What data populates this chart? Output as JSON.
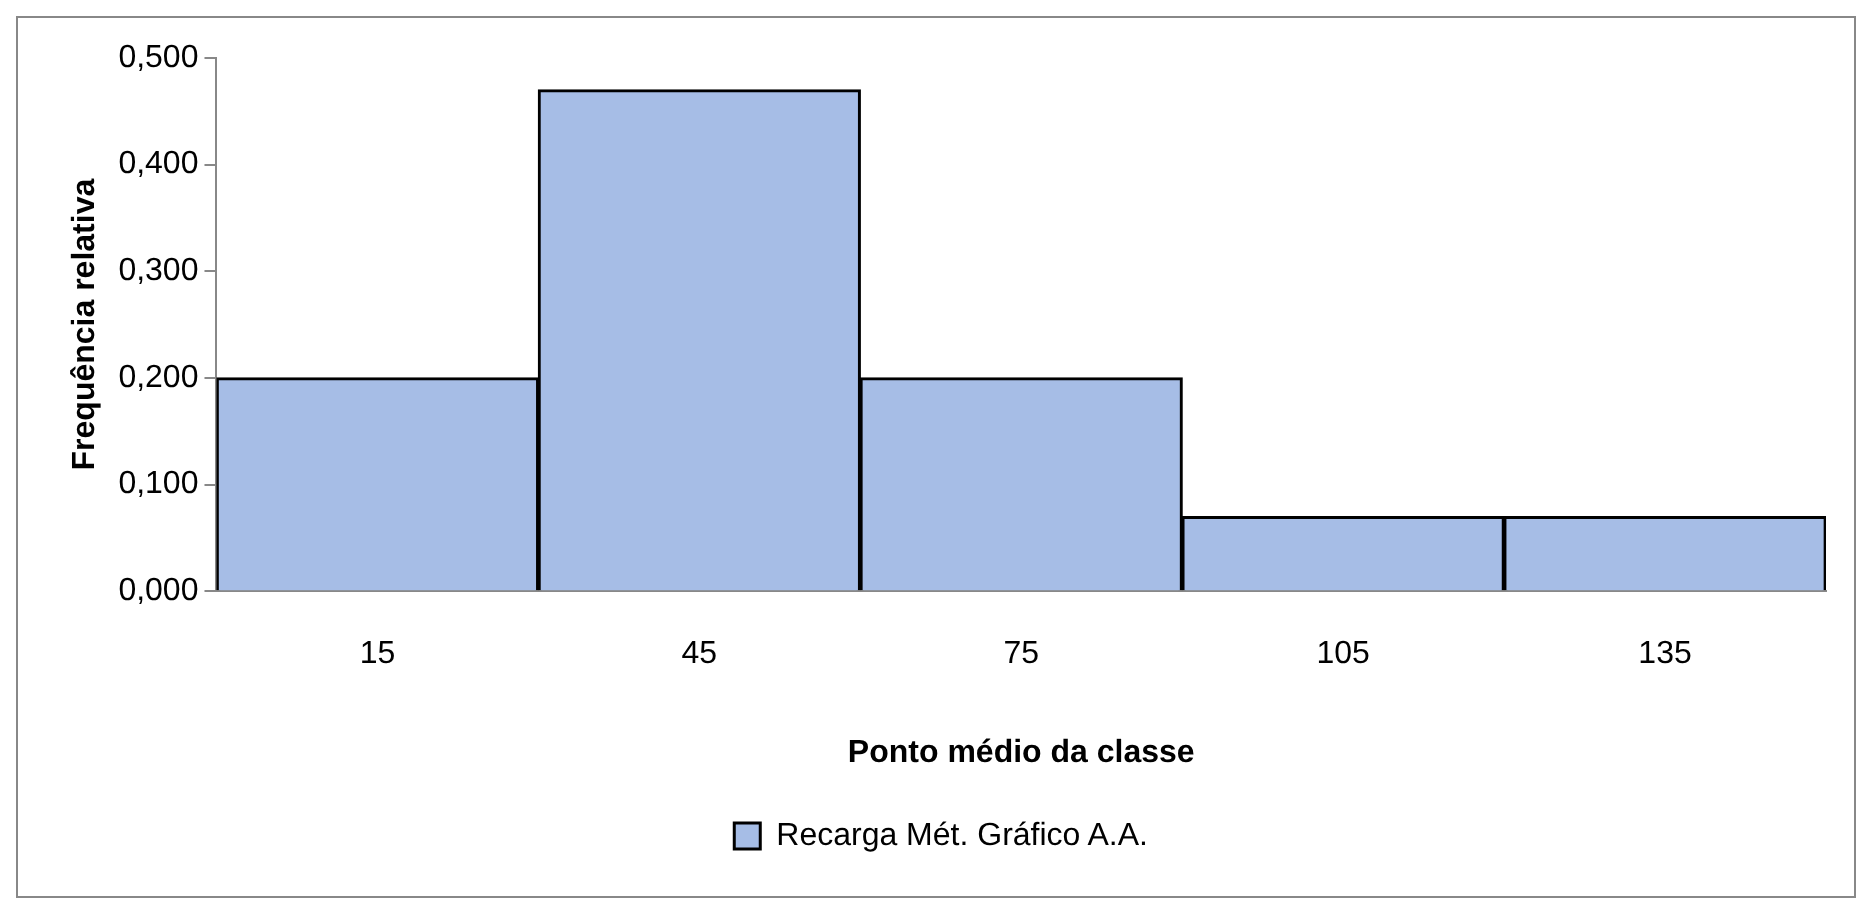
{
  "chart_data": {
    "type": "bar",
    "xlabel": "Ponto médio da classe",
    "ylabel": "Frequência relativa",
    "categories": [
      "15",
      "45",
      "75",
      "105",
      "135"
    ],
    "series": [
      {
        "name": "Recarga Mét. Gráfico A.A.",
        "color": "#a6bde6",
        "values": [
          0.2,
          0.47,
          0.2,
          0.07,
          0.07
        ]
      }
    ],
    "ylim": [
      0,
      0.5
    ],
    "yticks": [
      {
        "value": 0,
        "label": "0,000"
      },
      {
        "value": 0.1,
        "label": "0,100"
      },
      {
        "value": 0.2,
        "label": "0,200"
      },
      {
        "value": 0.3,
        "label": "0,300"
      },
      {
        "value": 0.4,
        "label": "0,400"
      },
      {
        "value": 0.5,
        "label": "0,500"
      }
    ],
    "grid": false,
    "legend": "bottom"
  }
}
